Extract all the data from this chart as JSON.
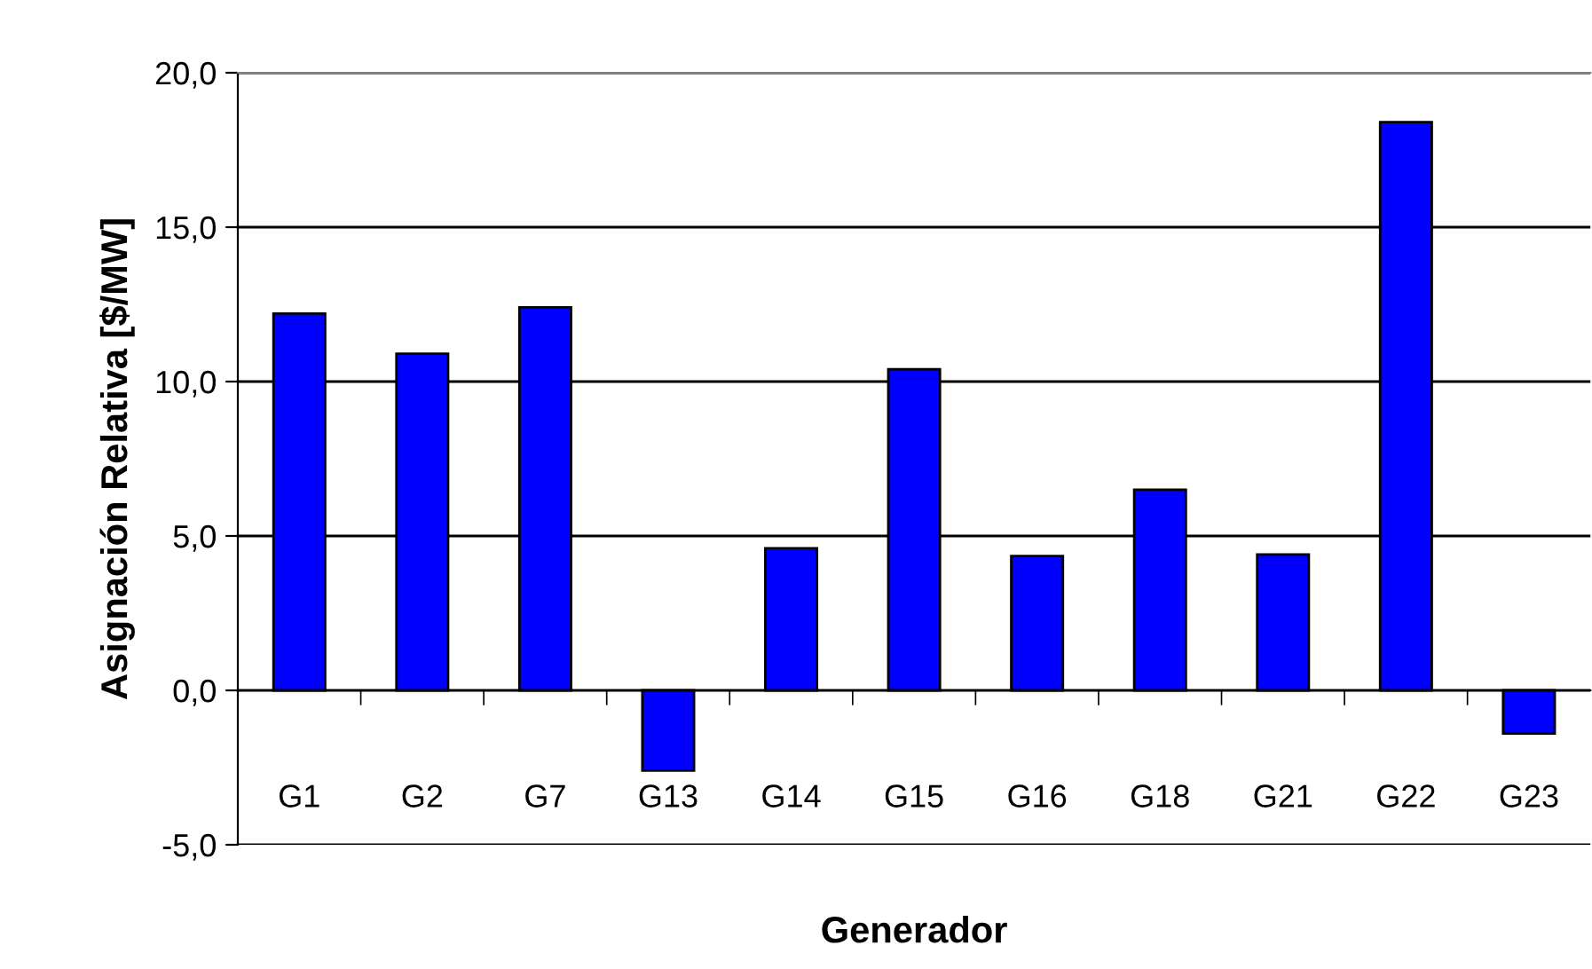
{
  "chart_data": {
    "type": "bar",
    "xlabel": "Generador",
    "ylabel": "Asignación Relativa [$/MW]",
    "categories": [
      "G1",
      "G2",
      "G7",
      "G13",
      "G14",
      "G15",
      "G16",
      "G18",
      "G21",
      "G22",
      "G23"
    ],
    "values": [
      12.2,
      10.9,
      12.4,
      -2.6,
      4.6,
      10.4,
      4.35,
      6.5,
      4.4,
      18.4,
      -1.4
    ],
    "color": "#0000ff",
    "ylim": [
      -5,
      20
    ],
    "yticks": [
      {
        "value": -5,
        "label": "-5,0"
      },
      {
        "value": 0,
        "label": "0,0"
      },
      {
        "value": 5,
        "label": "5,0"
      },
      {
        "value": 10,
        "label": "10,0"
      },
      {
        "value": 15,
        "label": "15,0"
      },
      {
        "value": 20,
        "label": "20,0"
      }
    ],
    "grid": "y"
  }
}
